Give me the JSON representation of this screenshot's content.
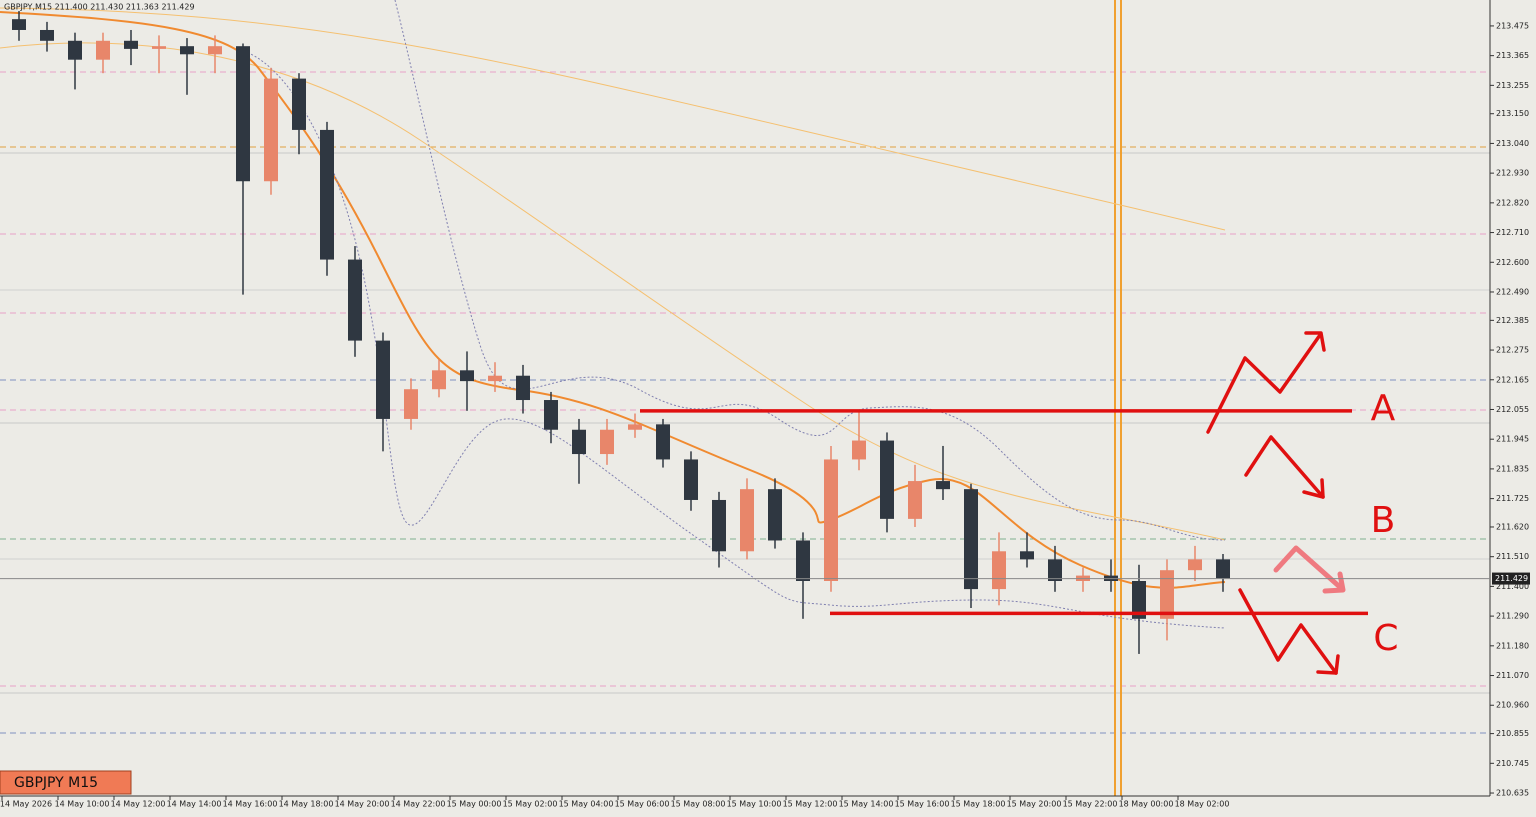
{
  "chart_data": {
    "type": "candlestick",
    "title": "GBPJPY,M15  211.400 211.430 211.363 211.429",
    "symbol_label": "GBPJPY M15",
    "last_price": 211.429,
    "up_color": "#e8866a",
    "down_color": "#2f3741",
    "ylim": [
      210.624,
      213.571
    ],
    "yticks": [
      213.475,
      213.365,
      213.255,
      {
        "value": 213.15,
        "label": "213.150"
      },
      {
        "value": 213.04,
        "label": "213.040"
      },
      {
        "value": 212.93,
        "label": "212.930"
      },
      {
        "value": 212.82,
        "label": "212.820"
      },
      {
        "value": 212.71,
        "label": "212.710"
      },
      {
        "value": 212.6,
        "label": "212.600"
      },
      {
        "value": 212.49,
        "label": "212.490"
      },
      212.385,
      212.275,
      212.165,
      212.055,
      211.945,
      211.835,
      211.725,
      {
        "value": 211.62,
        "label": "211.620"
      },
      {
        "value": 211.51,
        "label": "211.510"
      },
      {
        "value": 211.4,
        "label": "211.400"
      },
      {
        "value": 211.29,
        "label": "211.290"
      },
      {
        "value": 211.18,
        "label": "211.180"
      },
      {
        "value": 211.07,
        "label": "211.070"
      },
      {
        "value": 210.96,
        "label": "210.960"
      },
      210.855,
      210.745,
      210.635
    ],
    "categories": [
      "14 May 2026",
      "14 May 10:00",
      "14 May 12:00",
      "14 May 14:00",
      "14 May 16:00",
      "14 May 18:00",
      "14 May 20:00",
      "14 May 22:00",
      "15 May 00:00",
      "15 May 02:00",
      "15 May 04:00",
      "15 May 06:00",
      "15 May 08:00",
      "15 May 10:00",
      "15 May 12:00",
      "15 May 14:00",
      "15 May 16:00",
      "15 May 18:00",
      "15 May 20:00",
      "15 May 22:00",
      "18 May 00:00",
      "18 May 02:00"
    ],
    "candles": [
      [
        213.5,
        213.53,
        213.42,
        213.46
      ],
      [
        213.46,
        213.49,
        213.38,
        213.42
      ],
      [
        213.42,
        213.45,
        213.24,
        213.35
      ],
      [
        213.35,
        213.45,
        213.3,
        213.42
      ],
      [
        213.42,
        213.46,
        213.33,
        213.39
      ],
      [
        213.39,
        213.44,
        213.3,
        213.4
      ],
      [
        213.4,
        213.43,
        213.22,
        213.37
      ],
      [
        213.37,
        213.44,
        213.3,
        213.4
      ],
      [
        213.4,
        213.41,
        212.48,
        212.9
      ],
      [
        212.9,
        213.32,
        212.85,
        213.28
      ],
      [
        213.28,
        213.3,
        213.0,
        213.09
      ],
      [
        213.09,
        213.12,
        212.55,
        212.61
      ],
      [
        212.61,
        212.66,
        212.25,
        212.31
      ],
      [
        212.31,
        212.34,
        211.9,
        212.02
      ],
      [
        212.02,
        212.17,
        211.98,
        212.13
      ],
      [
        212.13,
        212.24,
        212.1,
        212.2
      ],
      [
        212.2,
        212.27,
        212.05,
        212.16
      ],
      [
        212.16,
        212.23,
        212.12,
        212.18
      ],
      [
        212.18,
        212.22,
        212.04,
        212.09
      ],
      [
        212.09,
        212.12,
        211.93,
        211.98
      ],
      [
        211.98,
        212.02,
        211.78,
        211.89
      ],
      [
        211.89,
        212.02,
        211.85,
        211.98
      ],
      [
        211.98,
        212.04,
        211.95,
        212.0
      ],
      [
        212.0,
        212.02,
        211.84,
        211.87
      ],
      [
        211.87,
        211.9,
        211.68,
        211.72
      ],
      [
        211.72,
        211.75,
        211.47,
        211.53
      ],
      [
        211.53,
        211.8,
        211.5,
        211.76
      ],
      [
        211.76,
        211.8,
        211.54,
        211.57
      ],
      [
        211.57,
        211.6,
        211.28,
        211.42
      ],
      [
        211.42,
        211.92,
        211.38,
        211.87
      ],
      [
        211.87,
        212.05,
        211.83,
        211.94
      ],
      [
        211.94,
        211.97,
        211.6,
        211.65
      ],
      [
        211.65,
        211.85,
        211.62,
        211.79
      ],
      [
        211.79,
        211.92,
        211.72,
        211.76
      ],
      [
        211.76,
        211.78,
        211.32,
        211.39
      ],
      [
        211.39,
        211.6,
        211.33,
        211.53
      ],
      [
        211.53,
        211.6,
        211.47,
        211.5
      ],
      [
        211.5,
        211.55,
        211.38,
        211.42
      ],
      [
        211.42,
        211.47,
        211.38,
        211.44
      ],
      [
        211.44,
        211.5,
        211.38,
        211.42
      ],
      [
        211.42,
        211.48,
        211.15,
        211.28
      ],
      [
        211.28,
        211.5,
        211.2,
        211.46
      ],
      [
        211.46,
        211.55,
        211.42,
        211.5
      ],
      [
        211.5,
        211.52,
        211.38,
        211.43
      ]
    ],
    "levels": [
      212.05,
      211.3
    ],
    "level_color": "#e01010",
    "annotations": [
      "A",
      "B",
      "C"
    ]
  }
}
